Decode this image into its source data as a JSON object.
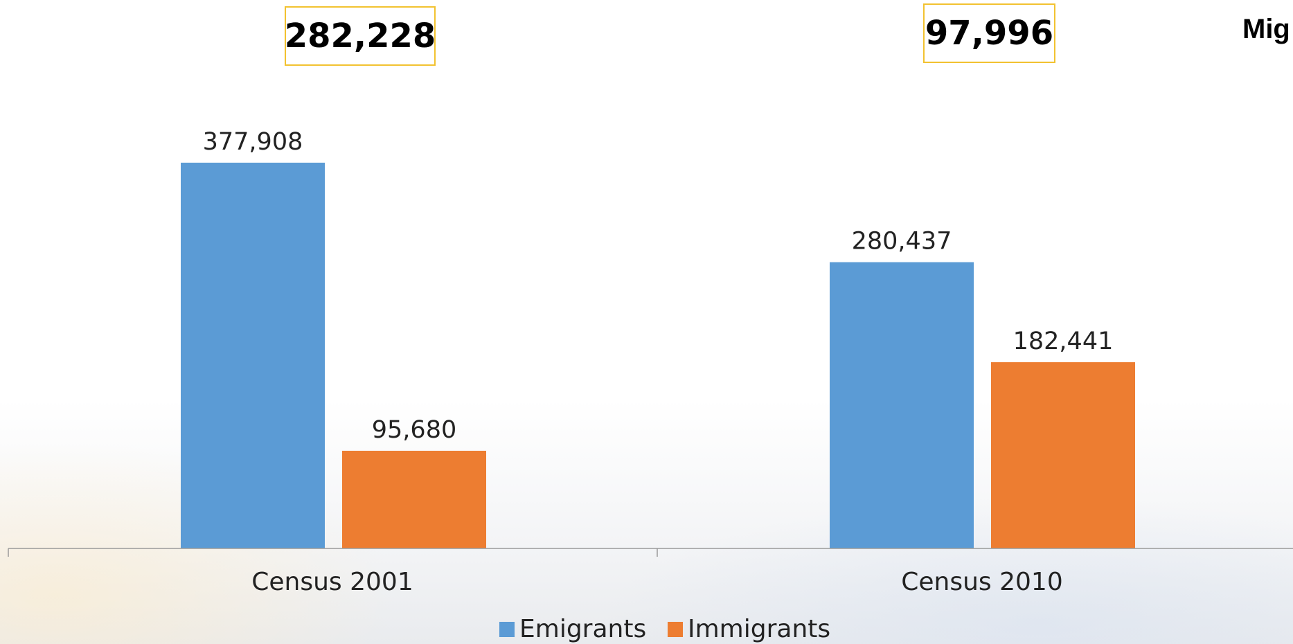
{
  "title": "Mig",
  "callouts": [
    {
      "category": "Census 2001",
      "text": "282,228"
    },
    {
      "category": "Census 2010",
      "text": "97,996"
    }
  ],
  "colors": {
    "emigrants": "#5b9bd5",
    "immigrants": "#ed7d31",
    "callout_border": "#f2c230",
    "axis": "#9a9a9a"
  },
  "chart_data": {
    "type": "bar",
    "categories": [
      "Census 2001",
      "Census 2010"
    ],
    "series": [
      {
        "name": "Emigrants",
        "values": [
          377908,
          280437
        ],
        "labels": [
          "377,908",
          "280,437"
        ]
      },
      {
        "name": "Immigrants",
        "values": [
          95680,
          182441
        ],
        "labels": [
          "95,680",
          "182,441"
        ]
      }
    ],
    "xlabel": "",
    "ylabel": "",
    "ylim": [
      0,
      400000
    ],
    "grid": false,
    "legend": "bottom-center"
  }
}
